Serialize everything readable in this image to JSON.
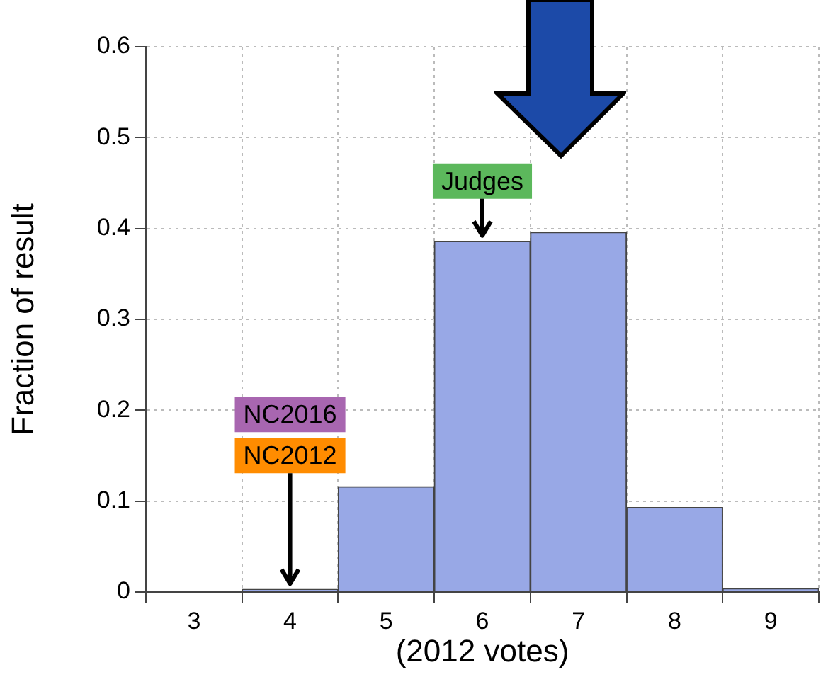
{
  "chart_data": {
    "type": "histogram",
    "xlabel": "(2012 votes)",
    "ylabel": "Fraction of result",
    "bins": [
      2.5,
      3.5,
      4.5,
      5.5,
      6.5,
      7.5,
      8.5,
      9.5
    ],
    "values": [
      0,
      0.003,
      0.116,
      0.386,
      0.396,
      0.093,
      0.004
    ],
    "color": "#98a8e6",
    "xlim": [
      2.5,
      9.5
    ],
    "xticks": [
      3,
      4,
      5,
      6,
      7,
      8,
      9
    ],
    "ylim": [
      0,
      0.6
    ],
    "yticks": [
      0,
      0.1,
      0.2,
      0.3,
      0.4,
      0.5,
      0.6
    ],
    "grid": true,
    "legend": false,
    "annotations": [
      {
        "text": "Judges",
        "x": 6,
        "y": 0.386
      },
      "NC2016",
      {
        "text": "NC2012",
        "x": 4,
        "y": 0.003
      }
    ]
  }
}
